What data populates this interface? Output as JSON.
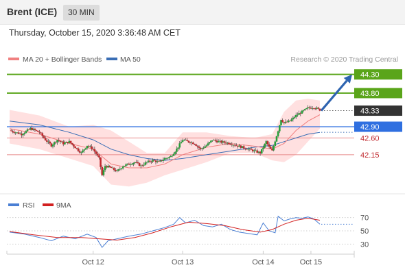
{
  "header": {
    "instrument": "Brent (ICE)",
    "timeframe": "30 MIN",
    "timestamp": "Thursday, October 15, 2020 3:36:48 AM CET"
  },
  "colors": {
    "candle_up": "#27a03a",
    "candle_down": "#c0282d",
    "ma20": "#f08080",
    "band_fill": "#ffd6d6",
    "ma50": "#3a6eb5",
    "resistance": "#5aa51a",
    "support": "#e88a8a",
    "pivot": "#2f6fe0",
    "current": "#333333",
    "rsi": "#4a7fd4",
    "rsi_ma": "#d22020",
    "arrow": "#2e64b0"
  },
  "chart_data": [
    {
      "type": "candlestick",
      "title": "",
      "legend": [
        "MA 20 + Bollinger Bands",
        "MA 50"
      ],
      "legend_placement": "top-left",
      "attribution": "Research © 2020 Trading Central",
      "x_labels": [
        "Oct 12",
        "Oct 13",
        "Oct 14",
        "Oct 15"
      ],
      "ylim": [
        41.25,
        44.55
      ],
      "levels": [
        {
          "value": 44.3,
          "label": "44.30",
          "kind": "resistance"
        },
        {
          "value": 43.8,
          "label": "43.80",
          "kind": "resistance"
        },
        {
          "value": 43.33,
          "label": "43.33",
          "kind": "current"
        },
        {
          "value": 42.9,
          "label": "42.90",
          "kind": "pivot"
        },
        {
          "value": 42.6,
          "label": "42.60",
          "kind": "support"
        },
        {
          "value": 42.15,
          "label": "42.15",
          "kind": "support"
        }
      ],
      "price_path": [
        [
          0,
          42.8
        ],
        [
          4,
          42.7
        ],
        [
          7,
          42.85
        ],
        [
          10,
          42.75
        ],
        [
          12,
          42.55
        ],
        [
          14,
          42.4
        ],
        [
          16,
          42.55
        ],
        [
          18,
          42.45
        ],
        [
          20,
          42.5
        ],
        [
          22,
          42.35
        ],
        [
          24,
          42.2
        ],
        [
          26,
          42.4
        ],
        [
          28,
          42.3
        ],
        [
          30,
          42.05
        ],
        [
          31,
          41.6
        ],
        [
          32,
          41.85
        ],
        [
          34,
          41.8
        ],
        [
          36,
          41.7
        ],
        [
          38,
          41.85
        ],
        [
          40,
          41.9
        ],
        [
          42,
          41.95
        ],
        [
          44,
          41.85
        ],
        [
          46,
          41.95
        ],
        [
          48,
          42.0
        ],
        [
          50,
          41.95
        ],
        [
          52,
          42.05
        ],
        [
          54,
          42.1
        ],
        [
          56,
          42.3
        ],
        [
          58,
          42.55
        ],
        [
          60,
          42.5
        ],
        [
          62,
          42.45
        ],
        [
          64,
          42.3
        ],
        [
          66,
          42.4
        ],
        [
          68,
          42.55
        ],
        [
          70,
          42.5
        ],
        [
          72,
          42.48
        ],
        [
          74,
          42.45
        ],
        [
          76,
          42.4
        ],
        [
          78,
          42.35
        ],
        [
          80,
          42.3
        ],
        [
          82,
          42.25
        ],
        [
          84,
          42.2
        ],
        [
          86,
          42.5
        ],
        [
          87,
          42.35
        ],
        [
          88,
          42.25
        ],
        [
          90,
          42.8
        ],
        [
          91,
          43.1
        ],
        [
          92,
          43.0
        ],
        [
          94,
          43.05
        ],
        [
          96,
          43.2
        ],
        [
          98,
          43.3
        ],
        [
          100,
          43.4
        ],
        [
          102,
          43.42
        ],
        [
          104,
          43.35
        ]
      ],
      "ma20_path": [
        [
          0,
          42.85
        ],
        [
          10,
          42.7
        ],
        [
          20,
          42.45
        ],
        [
          28,
          42.3
        ],
        [
          34,
          41.9
        ],
        [
          40,
          41.8
        ],
        [
          46,
          41.8
        ],
        [
          52,
          41.9
        ],
        [
          58,
          42.15
        ],
        [
          66,
          42.35
        ],
        [
          74,
          42.45
        ],
        [
          82,
          42.38
        ],
        [
          88,
          42.3
        ],
        [
          92,
          42.45
        ],
        [
          96,
          42.8
        ],
        [
          100,
          43.05
        ],
        [
          104,
          43.22
        ]
      ],
      "band_upper": [
        [
          0,
          43.35
        ],
        [
          10,
          43.2
        ],
        [
          20,
          42.9
        ],
        [
          28,
          42.95
        ],
        [
          34,
          42.8
        ],
        [
          40,
          42.5
        ],
        [
          46,
          42.2
        ],
        [
          52,
          42.2
        ],
        [
          58,
          42.75
        ],
        [
          66,
          42.75
        ],
        [
          74,
          42.65
        ],
        [
          82,
          42.6
        ],
        [
          88,
          42.7
        ],
        [
          92,
          43.3
        ],
        [
          96,
          43.6
        ],
        [
          100,
          43.65
        ],
        [
          104,
          43.6
        ]
      ],
      "band_lower": [
        [
          0,
          42.45
        ],
        [
          10,
          42.3
        ],
        [
          20,
          42.05
        ],
        [
          28,
          41.85
        ],
        [
          34,
          41.35
        ],
        [
          40,
          41.3
        ],
        [
          46,
          41.4
        ],
        [
          52,
          41.6
        ],
        [
          58,
          41.75
        ],
        [
          66,
          41.95
        ],
        [
          74,
          42.2
        ],
        [
          82,
          42.2
        ],
        [
          88,
          42.0
        ],
        [
          92,
          41.95
        ],
        [
          96,
          42.15
        ],
        [
          100,
          42.5
        ],
        [
          104,
          42.85
        ]
      ],
      "ma50_path": [
        [
          0,
          43.05
        ],
        [
          10,
          42.95
        ],
        [
          20,
          42.75
        ],
        [
          28,
          42.55
        ],
        [
          34,
          42.3
        ],
        [
          40,
          42.15
        ],
        [
          46,
          42.05
        ],
        [
          52,
          42.0
        ],
        [
          58,
          42.05
        ],
        [
          66,
          42.15
        ],
        [
          74,
          42.25
        ],
        [
          82,
          42.35
        ],
        [
          88,
          42.4
        ],
        [
          92,
          42.5
        ],
        [
          96,
          42.6
        ],
        [
          100,
          42.7
        ],
        [
          104,
          42.75
        ]
      ],
      "projection_target": 44.3
    },
    {
      "type": "line",
      "title": "",
      "legend": [
        "RSI",
        "9MA"
      ],
      "legend_placement": "top-left",
      "ylim": [
        20,
        80
      ],
      "y_ticks": [
        70,
        50,
        30
      ],
      "rsi_path": [
        [
          0,
          48
        ],
        [
          5,
          45
        ],
        [
          10,
          40
        ],
        [
          14,
          35
        ],
        [
          18,
          42
        ],
        [
          22,
          38
        ],
        [
          26,
          45
        ],
        [
          29,
          40
        ],
        [
          31,
          25
        ],
        [
          33,
          35
        ],
        [
          36,
          38
        ],
        [
          40,
          42
        ],
        [
          44,
          45
        ],
        [
          48,
          50
        ],
        [
          52,
          55
        ],
        [
          55,
          60
        ],
        [
          57,
          70
        ],
        [
          59,
          62
        ],
        [
          62,
          66
        ],
        [
          65,
          58
        ],
        [
          68,
          56
        ],
        [
          71,
          60
        ],
        [
          74,
          52
        ],
        [
          77,
          48
        ],
        [
          80,
          46
        ],
        [
          83,
          44
        ],
        [
          85,
          62
        ],
        [
          87,
          50
        ],
        [
          89,
          47
        ],
        [
          90,
          72
        ],
        [
          92,
          65
        ],
        [
          94,
          68
        ],
        [
          96,
          70
        ],
        [
          98,
          69
        ],
        [
          100,
          71
        ],
        [
          102,
          68
        ],
        [
          104,
          60
        ]
      ],
      "ma9_path": [
        [
          0,
          49
        ],
        [
          8,
          44
        ],
        [
          16,
          40
        ],
        [
          24,
          40
        ],
        [
          30,
          38
        ],
        [
          36,
          36
        ],
        [
          42,
          40
        ],
        [
          48,
          47
        ],
        [
          54,
          56
        ],
        [
          60,
          63
        ],
        [
          66,
          61
        ],
        [
          72,
          58
        ],
        [
          78,
          52
        ],
        [
          84,
          48
        ],
        [
          88,
          52
        ],
        [
          92,
          60
        ],
        [
          96,
          66
        ],
        [
          100,
          69
        ],
        [
          104,
          66
        ]
      ]
    }
  ]
}
